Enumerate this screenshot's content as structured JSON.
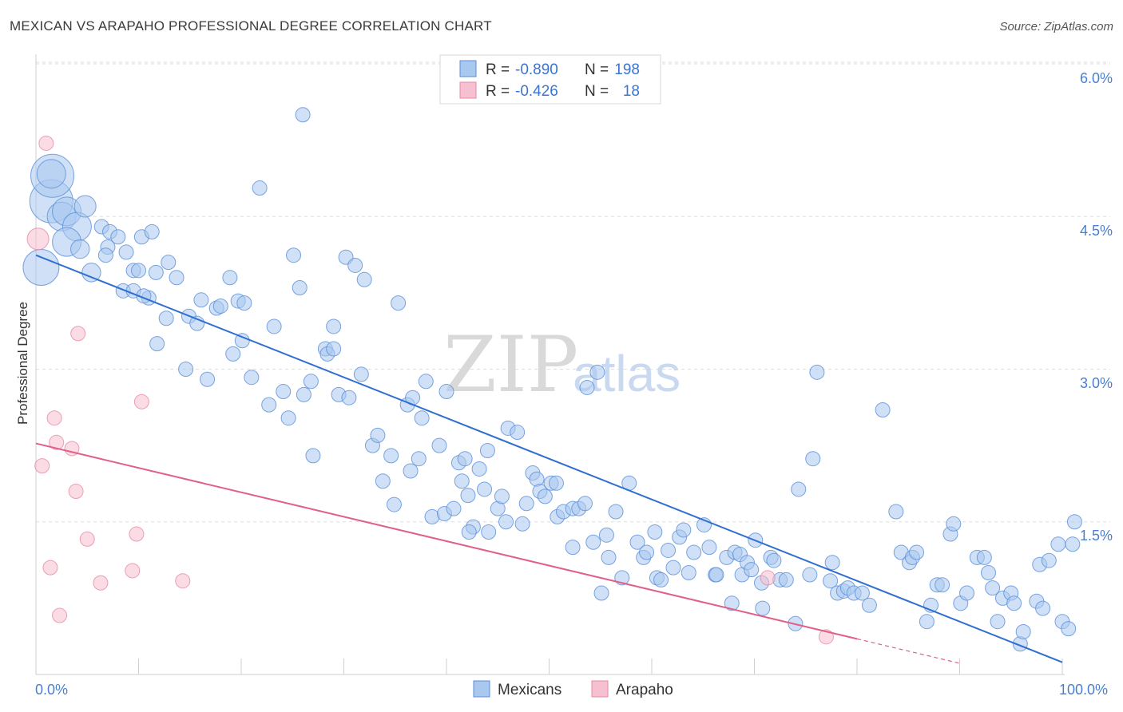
{
  "title": "MEXICAN VS ARAPAHO PROFESSIONAL DEGREE CORRELATION CHART",
  "source": "Source: ZipAtlas.com",
  "watermark": {
    "zip": "ZIP",
    "atlas": "atlas"
  },
  "colors": {
    "mexicans_fill": "#a9c8f0",
    "mexicans_stroke": "#5a8ed8",
    "mexicans_line": "#2f6fd0",
    "arapaho_fill": "#f7c0d0",
    "arapaho_stroke": "#e58aa6",
    "arapaho_line": "#e0608a",
    "axis_text": "#4a7fd0",
    "grid": "#dddddd"
  },
  "legend": {
    "rows": [
      {
        "r_label": "R =",
        "r_value": "-0.890",
        "n_label": "N =",
        "n_value": "198"
      },
      {
        "r_label": "R =",
        "r_value": "-0.426",
        "n_label": "N =",
        "n_value": "18"
      }
    ]
  },
  "bottom_legend": [
    "Mexicans",
    "Arapaho"
  ],
  "chart_data": {
    "type": "scatter",
    "title": "MEXICAN VS ARAPAHO PROFESSIONAL DEGREE CORRELATION CHART",
    "xlabel": "",
    "ylabel": "Professional Degree",
    "xlim": [
      0,
      100
    ],
    "ylim": [
      0,
      6.2
    ],
    "x_tick_labels": [
      "0.0%",
      "100.0%"
    ],
    "y_ticks": [
      1.5,
      3.0,
      4.5,
      6.0
    ],
    "y_tick_labels": [
      "1.5%",
      "3.0%",
      "4.5%",
      "6.0%"
    ],
    "grid": true,
    "series": [
      {
        "name": "Mexicans",
        "r": -0.89,
        "n": 198,
        "trend": {
          "x": [
            0,
            100
          ],
          "y": [
            4.12,
            0.12
          ]
        },
        "points": [
          [
            1.5,
            4.65,
            3
          ],
          [
            1.6,
            4.9,
            3
          ],
          [
            2.5,
            4.5,
            2
          ],
          [
            0.5,
            4.0,
            2.5
          ],
          [
            1.5,
            4.92,
            2
          ],
          [
            3,
            4.55,
            2
          ],
          [
            4,
            4.4,
            2
          ],
          [
            3,
            4.25,
            2
          ],
          [
            4.8,
            4.6,
            1.5
          ],
          [
            4.3,
            4.18,
            1.3
          ],
          [
            5.4,
            3.95,
            1.3
          ],
          [
            6.4,
            4.4,
            1
          ],
          [
            7.2,
            4.35,
            1
          ],
          [
            8,
            4.3,
            1
          ],
          [
            7,
            4.2,
            1
          ],
          [
            8.8,
            4.15,
            1
          ],
          [
            6.8,
            4.12,
            1
          ],
          [
            9.5,
            3.97,
            1
          ],
          [
            10.3,
            4.3,
            1
          ],
          [
            11.3,
            4.35,
            1
          ],
          [
            10,
            3.97,
            1
          ],
          [
            11.7,
            3.95,
            1
          ],
          [
            8.5,
            3.77,
            1
          ],
          [
            11,
            3.7,
            1
          ],
          [
            13.7,
            3.9,
            1
          ],
          [
            12.9,
            4.05,
            1
          ],
          [
            9.5,
            3.77,
            1
          ],
          [
            10.5,
            3.72,
            1
          ],
          [
            12.7,
            3.5,
            1
          ],
          [
            14.9,
            3.52,
            1
          ],
          [
            16.1,
            3.68,
            1
          ],
          [
            17.6,
            3.6,
            1
          ],
          [
            18,
            3.62,
            1
          ],
          [
            18.9,
            3.9,
            1
          ],
          [
            19.7,
            3.67,
            1
          ],
          [
            19.2,
            3.15,
            1
          ],
          [
            15.7,
            3.45,
            1
          ],
          [
            11.8,
            3.25,
            1
          ],
          [
            14.6,
            3.0,
            1
          ],
          [
            16.7,
            2.9,
            1
          ],
          [
            20.3,
            3.65,
            1
          ],
          [
            20.1,
            3.28,
            1
          ],
          [
            21,
            2.92,
            1
          ],
          [
            21.8,
            4.78,
            1
          ],
          [
            23.2,
            3.42,
            1
          ],
          [
            24.1,
            2.78,
            1
          ],
          [
            22.7,
            2.65,
            1
          ],
          [
            24.6,
            2.52,
            1
          ],
          [
            25.1,
            4.12,
            1
          ],
          [
            25.7,
            3.8,
            1
          ],
          [
            26.1,
            2.75,
            1
          ],
          [
            26,
            5.5,
            1
          ],
          [
            26.8,
            2.88,
            1
          ],
          [
            27,
            2.15,
            1
          ],
          [
            28.2,
            3.2,
            1
          ],
          [
            28.4,
            3.15,
            1
          ],
          [
            29,
            3.42,
            1
          ],
          [
            29,
            3.2,
            1
          ],
          [
            29.5,
            2.75,
            1
          ],
          [
            30.5,
            2.72,
            1
          ],
          [
            30.2,
            4.1,
            1
          ],
          [
            31.1,
            4.02,
            1
          ],
          [
            32,
            3.88,
            1
          ],
          [
            31.7,
            2.95,
            1
          ],
          [
            32.8,
            2.25,
            1
          ],
          [
            33.3,
            2.35,
            1
          ],
          [
            33.8,
            1.9,
            1
          ],
          [
            34.6,
            2.15,
            1
          ],
          [
            34.9,
            1.67,
            1
          ],
          [
            35.3,
            3.65,
            1
          ],
          [
            36.2,
            2.65,
            1
          ],
          [
            36.5,
            2.0,
            1
          ],
          [
            36.7,
            2.72,
            1
          ],
          [
            37.3,
            2.12,
            1
          ],
          [
            37.6,
            2.52,
            1
          ],
          [
            38,
            2.88,
            1
          ],
          [
            38.6,
            1.55,
            1
          ],
          [
            39.3,
            2.25,
            1
          ],
          [
            39.8,
            1.58,
            1
          ],
          [
            40,
            2.78,
            1
          ],
          [
            40.7,
            1.63,
            1
          ],
          [
            41.2,
            2.08,
            1
          ],
          [
            41.8,
            2.12,
            1
          ],
          [
            41.5,
            1.9,
            1
          ],
          [
            42.1,
            1.76,
            1
          ],
          [
            42.6,
            1.45,
            1
          ],
          [
            42.2,
            1.4,
            1
          ],
          [
            43.2,
            2.02,
            1
          ],
          [
            43.7,
            1.82,
            1
          ],
          [
            44,
            2.2,
            1
          ],
          [
            44.1,
            1.4,
            1
          ],
          [
            45,
            1.63,
            1
          ],
          [
            45.4,
            1.75,
            1
          ],
          [
            46,
            2.42,
            1
          ],
          [
            45.8,
            1.5,
            1
          ],
          [
            46.9,
            2.38,
            1
          ],
          [
            47.4,
            1.48,
            1
          ],
          [
            47.8,
            1.68,
            1
          ],
          [
            48.4,
            1.98,
            1
          ],
          [
            48.8,
            1.92,
            1
          ],
          [
            49.1,
            1.8,
            1
          ],
          [
            49.6,
            1.75,
            1
          ],
          [
            50.2,
            1.88,
            1
          ],
          [
            50.7,
            1.88,
            1
          ],
          [
            50.8,
            1.55,
            1
          ],
          [
            51.4,
            1.6,
            1
          ],
          [
            52.3,
            1.63,
            1
          ],
          [
            52.9,
            1.63,
            1
          ],
          [
            53.5,
            1.68,
            1
          ],
          [
            52.3,
            1.25,
            1
          ],
          [
            53.7,
            2.82,
            1
          ],
          [
            54.7,
            2.97,
            1
          ],
          [
            54.3,
            1.3,
            1
          ],
          [
            55.6,
            1.37,
            1
          ],
          [
            55.8,
            1.15,
            1
          ],
          [
            56.5,
            1.6,
            1
          ],
          [
            55.1,
            0.8,
            1
          ],
          [
            57.1,
            0.95,
            1
          ],
          [
            57.8,
            1.88,
            1
          ],
          [
            58.6,
            1.3,
            1
          ],
          [
            59.2,
            1.15,
            1
          ],
          [
            59.5,
            1.2,
            1
          ],
          [
            60.3,
            1.4,
            1
          ],
          [
            60.5,
            0.95,
            1
          ],
          [
            60.9,
            0.93,
            1
          ],
          [
            61.6,
            1.22,
            1
          ],
          [
            62.1,
            1.05,
            1
          ],
          [
            62.7,
            1.35,
            1
          ],
          [
            63.1,
            1.42,
            1
          ],
          [
            63.6,
            1.0,
            1
          ],
          [
            64.1,
            1.2,
            1
          ],
          [
            65.1,
            1.47,
            1
          ],
          [
            65.6,
            1.25,
            1
          ],
          [
            66.2,
            0.98,
            1
          ],
          [
            66.3,
            0.98,
            1
          ],
          [
            67.3,
            1.15,
            1
          ],
          [
            67.8,
            0.7,
            1
          ],
          [
            68.1,
            1.2,
            1
          ],
          [
            68.6,
            1.18,
            1
          ],
          [
            68.8,
            0.98,
            1
          ],
          [
            69.3,
            1.1,
            1
          ],
          [
            69.7,
            1.03,
            1
          ],
          [
            70.1,
            1.32,
            1
          ],
          [
            70.7,
            0.9,
            1
          ],
          [
            70.8,
            0.65,
            1
          ],
          [
            71.6,
            1.15,
            1
          ],
          [
            71.9,
            1.12,
            1
          ],
          [
            72.5,
            0.93,
            1
          ],
          [
            73.1,
            0.93,
            1
          ],
          [
            74,
            0.5,
            1
          ],
          [
            74.3,
            1.82,
            1
          ],
          [
            75.7,
            2.12,
            1
          ],
          [
            75.4,
            0.98,
            1
          ],
          [
            76.1,
            2.97,
            1
          ],
          [
            77.4,
            0.92,
            1
          ],
          [
            77.6,
            1.1,
            1
          ],
          [
            78.1,
            0.8,
            1
          ],
          [
            78.7,
            0.82,
            1
          ],
          [
            79.1,
            0.85,
            1
          ],
          [
            79.7,
            0.8,
            1
          ],
          [
            80.5,
            0.8,
            1
          ],
          [
            81.2,
            0.68,
            1
          ],
          [
            82.5,
            2.6,
            1
          ],
          [
            83.8,
            1.6,
            1
          ],
          [
            84.3,
            1.2,
            1
          ],
          [
            85.1,
            1.1,
            1
          ],
          [
            85.4,
            1.15,
            1
          ],
          [
            85.8,
            1.2,
            1
          ],
          [
            86.8,
            0.52,
            1
          ],
          [
            87.2,
            0.68,
            1
          ],
          [
            87.8,
            0.88,
            1
          ],
          [
            88.3,
            0.88,
            1
          ],
          [
            89.1,
            1.38,
            1
          ],
          [
            89.4,
            1.48,
            1
          ],
          [
            90.1,
            0.7,
            1
          ],
          [
            90.7,
            0.8,
            1
          ],
          [
            91.7,
            1.15,
            1
          ],
          [
            92.4,
            1.15,
            1
          ],
          [
            92.8,
            1.0,
            1
          ],
          [
            93.2,
            0.85,
            1
          ],
          [
            93.7,
            0.52,
            1
          ],
          [
            94.2,
            0.75,
            1
          ],
          [
            95,
            0.8,
            1
          ],
          [
            95.3,
            0.7,
            1
          ],
          [
            95.9,
            0.3,
            1
          ],
          [
            96.2,
            0.42,
            1
          ],
          [
            97.8,
            1.08,
            1
          ],
          [
            97.5,
            0.72,
            1
          ],
          [
            98.1,
            0.65,
            1
          ],
          [
            98.7,
            1.12,
            1
          ],
          [
            99.6,
            1.28,
            1
          ],
          [
            100,
            0.52,
            1
          ],
          [
            100.6,
            0.45,
            1
          ],
          [
            101,
            1.28,
            1
          ],
          [
            101.2,
            1.5,
            1
          ]
        ]
      },
      {
        "name": "Arapaho",
        "r": -0.426,
        "n": 18,
        "trend": {
          "x": [
            0,
            80
          ],
          "y": [
            2.27,
            0.35
          ],
          "dashed_to": {
            "x": [
              80,
              90
            ],
            "y": [
              0.35,
              0.11
            ]
          }
        },
        "points": [
          [
            0.2,
            4.28,
            1.5
          ],
          [
            1,
            5.22,
            1
          ],
          [
            0.6,
            2.05,
            1
          ],
          [
            1.4,
            1.05,
            1
          ],
          [
            1.8,
            2.52,
            1
          ],
          [
            2,
            2.28,
            1
          ],
          [
            2.3,
            0.58,
            1
          ],
          [
            3.5,
            2.22,
            1
          ],
          [
            3.9,
            1.8,
            1
          ],
          [
            4.1,
            3.35,
            1
          ],
          [
            5,
            1.33,
            1
          ],
          [
            6.3,
            0.9,
            1
          ],
          [
            9.4,
            1.02,
            1
          ],
          [
            9.8,
            1.38,
            1
          ],
          [
            10.3,
            2.68,
            1
          ],
          [
            14.3,
            0.92,
            1
          ],
          [
            71.3,
            0.95,
            1
          ],
          [
            77,
            0.37,
            1
          ]
        ]
      }
    ]
  }
}
